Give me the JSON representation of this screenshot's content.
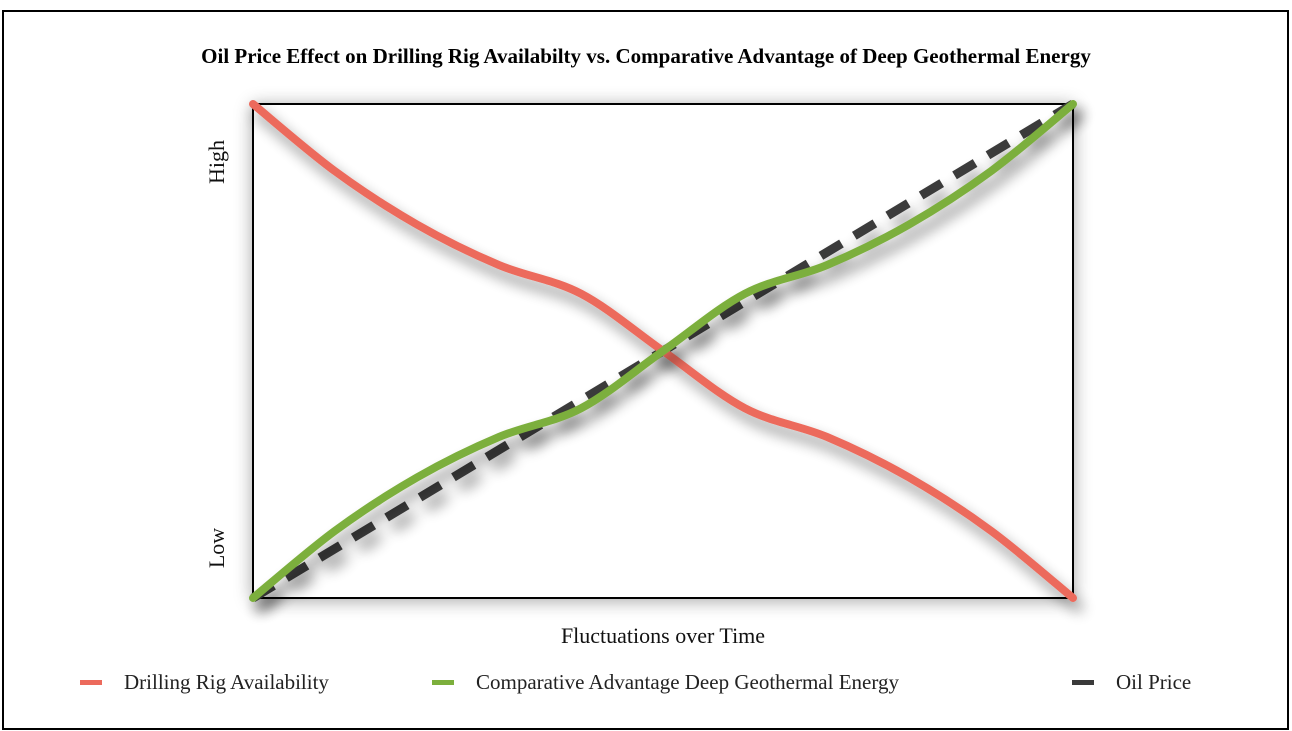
{
  "chart_data": {
    "type": "line",
    "title": "Oil Price Effect on Drilling Rig Availabilty vs. Comparative Advantage of Deep Geothermal Energy",
    "xlabel": "Fluctuations over Time",
    "ylabel": "",
    "y_tick_labels": {
      "low": "Low",
      "high": "High"
    },
    "x": [
      0,
      0.1,
      0.2,
      0.3,
      0.4,
      0.5,
      0.6,
      0.7,
      0.8,
      0.9,
      1.0
    ],
    "xlim": [
      0,
      1
    ],
    "ylim": [
      0,
      1
    ],
    "grid": false,
    "legend_position": "bottom",
    "series": [
      {
        "name": "Drilling Rig Availability",
        "color": "#ec6a5c",
        "style": "solid",
        "values": [
          1.0,
          0.864,
          0.756,
          0.674,
          0.616,
          0.5,
          0.384,
          0.326,
          0.244,
          0.136,
          0.0
        ]
      },
      {
        "name": "Comparative Advantage Deep Geothermal Energy",
        "color": "#7caf3c",
        "style": "solid",
        "values": [
          0.0,
          0.136,
          0.244,
          0.326,
          0.384,
          0.5,
          0.616,
          0.674,
          0.756,
          0.864,
          1.0
        ]
      },
      {
        "name": "Oil Price",
        "color": "#3a3a3a",
        "style": "dashed",
        "values": [
          0.0,
          0.1,
          0.2,
          0.3,
          0.4,
          0.5,
          0.6,
          0.7,
          0.8,
          0.9,
          1.0
        ]
      }
    ]
  }
}
